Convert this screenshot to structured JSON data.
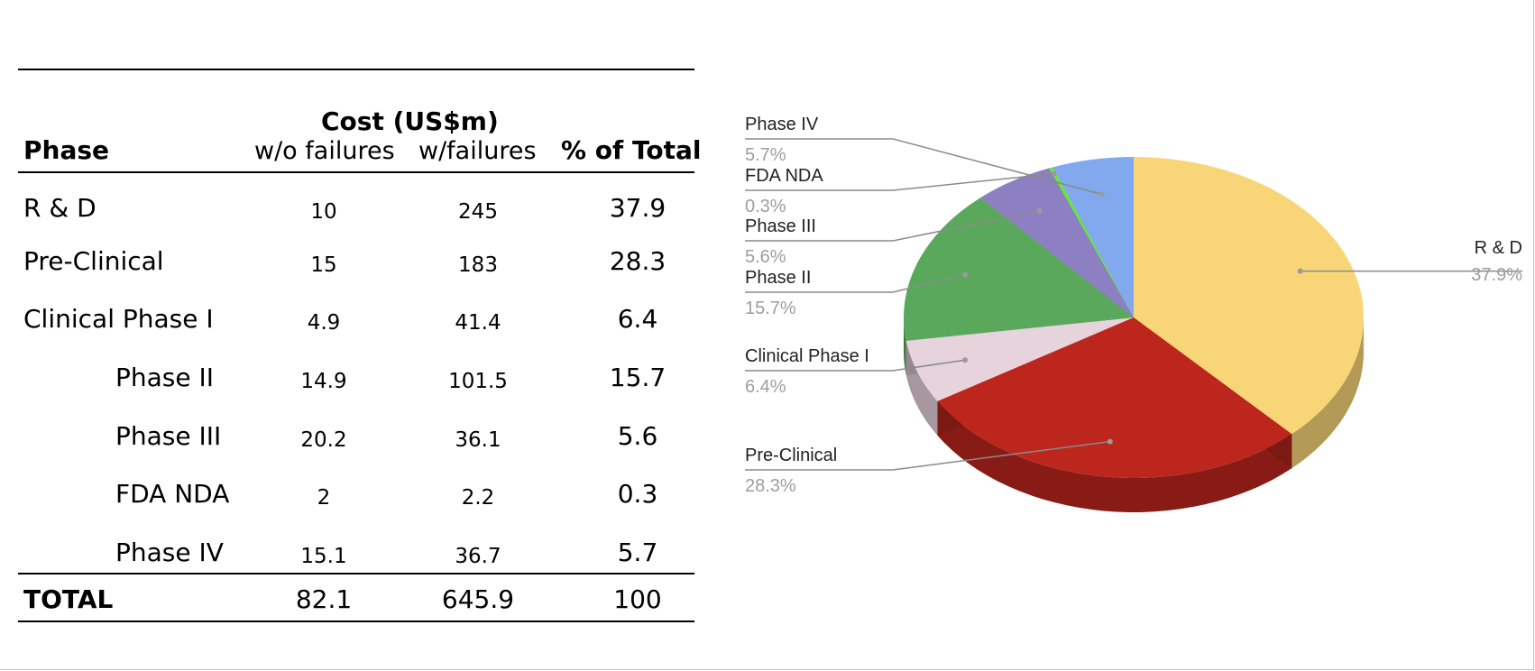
{
  "table": {
    "header": {
      "cost_group": "Cost (US$m)",
      "phase": "Phase",
      "wo_failures": "w/o failures",
      "w_failures": "w/failures",
      "pct_total": "% of Total"
    },
    "rows": [
      {
        "phase": "R & D",
        "wo": "10",
        "w": "245",
        "pct": "37.9"
      },
      {
        "phase": "Pre-Clinical",
        "wo": "15",
        "w": "183",
        "pct": "28.3"
      },
      {
        "phase": "Clinical Phase I",
        "wo": "4.9",
        "w": "41.4",
        "pct": "6.4"
      },
      {
        "phase": "Phase II",
        "wo": "14.9",
        "w": "101.5",
        "pct": "15.7"
      },
      {
        "phase": "Phase III",
        "wo": "20.2",
        "w": "36.1",
        "pct": "5.6"
      },
      {
        "phase": "FDA NDA",
        "wo": "2",
        "w": "2.2",
        "pct": "0.3"
      },
      {
        "phase": "Phase IV",
        "wo": "15.1",
        "w": "36.7",
        "pct": "5.7"
      }
    ],
    "total": {
      "label": "TOTAL",
      "wo": "82.1",
      "w": "645.9",
      "pct": "100"
    }
  },
  "chart_data": {
    "type": "pie",
    "style": "3d",
    "title": "",
    "slices": [
      {
        "label": "R & D",
        "value": 37.9,
        "pct_label": "37.9%",
        "color": "#F8D678"
      },
      {
        "label": "Pre-Clinical",
        "value": 28.3,
        "pct_label": "28.3%",
        "color": "#BD261D"
      },
      {
        "label": "Clinical Phase I",
        "value": 6.4,
        "pct_label": "6.4%",
        "color": "#E7D3DB"
      },
      {
        "label": "Phase II",
        "value": 15.7,
        "pct_label": "15.7%",
        "color": "#5AA85B"
      },
      {
        "label": "Phase III",
        "value": 5.6,
        "pct_label": "5.6%",
        "color": "#8C80C3"
      },
      {
        "label": "FDA NDA",
        "value": 0.3,
        "pct_label": "0.3%",
        "color": "#6BE24A"
      },
      {
        "label": "Phase IV",
        "value": 5.7,
        "pct_label": "5.7%",
        "color": "#82A8EE"
      }
    ]
  }
}
